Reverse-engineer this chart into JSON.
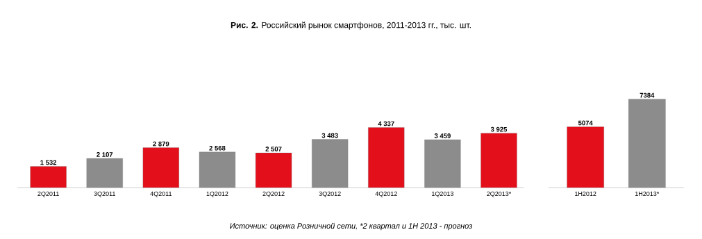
{
  "chart_data": [
    {
      "type": "bar",
      "title": "**Рис. 2.** Российский рынок смартфонов, 2011-2013 гг., тыс. шт.",
      "annotations": [
        "Источник: оценка Розничной сети, *2 квартал и 1H 2013 - прогноз"
      ],
      "categories": [
        "2Q2011",
        "3Q2011",
        "4Q2011",
        "1Q2012",
        "2Q2012",
        "3Q2012",
        "4Q2012",
        "1Q2013",
        "2Q2013*"
      ],
      "values": [
        1532,
        2107,
        2879,
        2568,
        2507,
        3483,
        4337,
        3459,
        3925
      ],
      "value_labels": [
        "1 532",
        "2 107",
        "2 879",
        "2 568",
        "2 507",
        "3 483",
        "4 337",
        "3 459",
        "3 925"
      ],
      "colors": [
        "#e3101c",
        "#8c8c8c",
        "#e3101c",
        "#8c8c8c",
        "#e3101c",
        "#8c8c8c",
        "#e3101c",
        "#8c8c8c",
        "#e3101c"
      ]
    },
    {
      "type": "bar",
      "categories": [
        "1H2012",
        "1H2013*"
      ],
      "values": [
        5074,
        7384
      ],
      "data_labels": true,
      "colors": [
        "#e3101c",
        "#8c8c8c"
      ]
    }
  ]
}
